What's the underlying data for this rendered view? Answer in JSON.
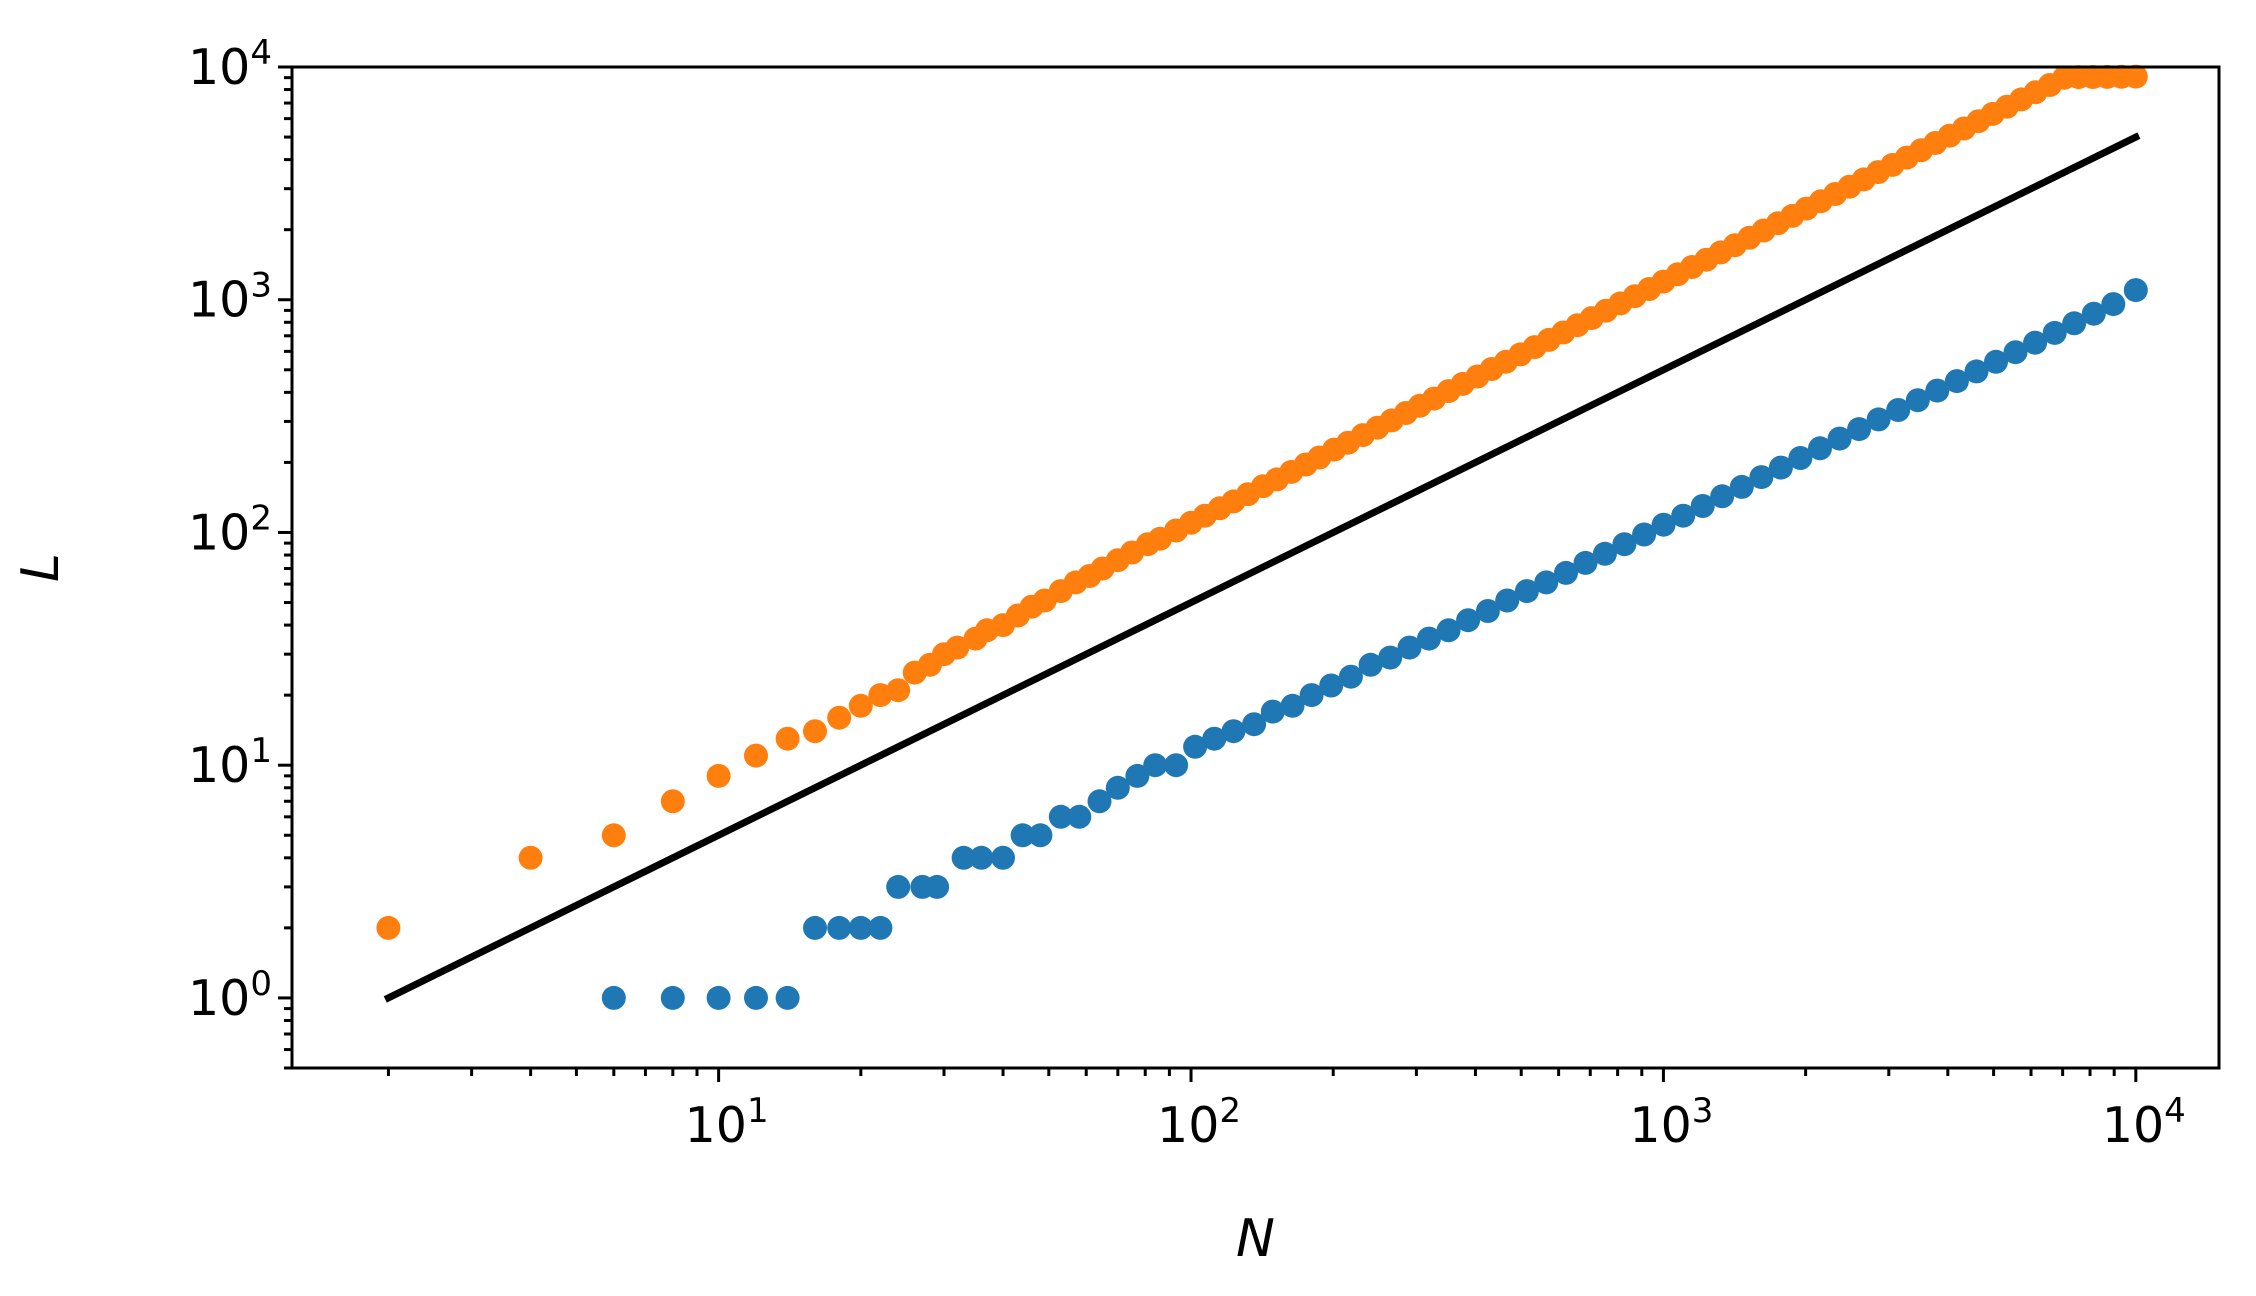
{
  "chart_data": {
    "type": "scatter",
    "title": "",
    "xlabel": "N",
    "ylabel": "L",
    "xscale": "log",
    "yscale": "log",
    "xlim": [
      1.25,
      15000
    ],
    "ylim": [
      0.5,
      10000
    ],
    "grid": false,
    "legend": "none",
    "x_ticks": [
      {
        "value": 10,
        "base": "10",
        "exp": "1"
      },
      {
        "value": 100,
        "base": "10",
        "exp": "2"
      },
      {
        "value": 1000,
        "base": "10",
        "exp": "3"
      },
      {
        "value": 10000,
        "base": "10",
        "exp": "4"
      }
    ],
    "y_ticks": [
      {
        "value": 1,
        "base": "10",
        "exp": "0"
      },
      {
        "value": 10,
        "base": "10",
        "exp": "1"
      },
      {
        "value": 100,
        "base": "10",
        "exp": "2"
      },
      {
        "value": 1000,
        "base": "10",
        "exp": "3"
      },
      {
        "value": 10000,
        "base": "10",
        "exp": "4"
      }
    ],
    "series": [
      {
        "type": "scatter",
        "color": "#ff7f0e",
        "x": [
          2,
          4,
          6,
          8,
          10,
          12,
          14,
          16,
          18,
          20,
          22,
          24,
          26,
          28,
          30,
          32,
          35,
          37,
          40,
          43,
          46,
          49,
          53,
          57,
          61,
          65,
          70,
          75,
          81,
          86,
          93,
          100,
          107,
          115,
          123,
          132,
          142,
          152,
          163,
          175,
          187,
          201,
          215,
          231,
          248,
          266,
          285,
          305,
          327,
          351,
          376,
          404,
          433,
          464,
          498,
          534,
          572,
          614,
          658,
          705,
          756,
          811,
          870,
          933,
          1000,
          1072,
          1150,
          1233,
          1322,
          1417,
          1520,
          1630,
          1748,
          1874,
          2009,
          2154,
          2310,
          2477,
          2656,
          2848,
          3054,
          3275,
          3511,
          3765,
          4037,
          4329,
          4642,
          4977,
          5337,
          5722,
          6136,
          6579,
          7055,
          7565,
          8111,
          8697,
          9326,
          10000
        ],
        "y": [
          2,
          4,
          5,
          7,
          9,
          11,
          13,
          14,
          16,
          18,
          20,
          21,
          25,
          27,
          30,
          32,
          35,
          38,
          40,
          44,
          48,
          51,
          56,
          61,
          65,
          70,
          76,
          82,
          89,
          94,
          102,
          110,
          118,
          127,
          136,
          146,
          158,
          169,
          182,
          196,
          210,
          227,
          243,
          262,
          282,
          303,
          326,
          350,
          376,
          405,
          435,
          468,
          504,
          541,
          582,
          626,
          672,
          723,
          777,
          834,
          897,
          964,
          1036,
          1112,
          1196,
          1286,
          1382,
          1486,
          1597,
          1716,
          1845,
          1984,
          2133,
          2292,
          2464,
          2648,
          2846,
          3059,
          3288,
          3534,
          3798,
          4082,
          4387,
          4715,
          5067,
          5444,
          5850,
          6285,
          6752,
          7254,
          7793,
          8370,
          8990,
          9050,
          9060,
          9070,
          9080,
          9090
        ]
      },
      {
        "type": "scatter",
        "color": "#1f77b4",
        "x": [
          6,
          8,
          10,
          12,
          14,
          16,
          18,
          20,
          22,
          24,
          27,
          29,
          33,
          36,
          40,
          44,
          48,
          53,
          58,
          64,
          70,
          77,
          84,
          93,
          102,
          112,
          123,
          136,
          149,
          164,
          180,
          198,
          218,
          240,
          264,
          290,
          319,
          351,
          386,
          425,
          467,
          514,
          565,
          622,
          684,
          752,
          827,
          910,
          1001,
          1101,
          1211,
          1332,
          1465,
          1612,
          1773,
          1950,
          2145,
          2360,
          2596,
          2855,
          3141,
          3455,
          3800,
          4181,
          4599,
          5059,
          5564,
          6121,
          6733,
          7406,
          8147,
          8962,
          10000
        ],
        "y": [
          1,
          1,
          1,
          1,
          1,
          2,
          2,
          2,
          2,
          3,
          3,
          3,
          4,
          4,
          4,
          5,
          5,
          6,
          6,
          7,
          8,
          9,
          10,
          10,
          12,
          13,
          14,
          15,
          17,
          18,
          20,
          22,
          24,
          27,
          29,
          32,
          35,
          38,
          42,
          46,
          51,
          56,
          61,
          67,
          74,
          81,
          89,
          98,
          108,
          118,
          130,
          143,
          157,
          173,
          190,
          209,
          230,
          253,
          278,
          306,
          336,
          370,
          407,
          447,
          492,
          541,
          595,
          654,
          720,
          792,
          871,
          958,
          1100
        ]
      },
      {
        "type": "line",
        "color": "#000000",
        "x": [
          2,
          10000
        ],
        "y": [
          1,
          5000
        ]
      }
    ]
  }
}
